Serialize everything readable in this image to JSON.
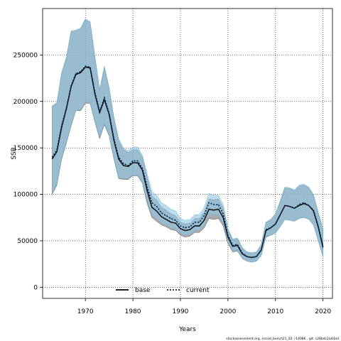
{
  "chart_data": {
    "type": "line",
    "xlabel": "Years",
    "ylabel": "SSB",
    "xlim": [
      1961,
      2022
    ],
    "ylim": [
      -12000,
      300000
    ],
    "xticks": [
      1970,
      1980,
      1990,
      2000,
      2010,
      2020
    ],
    "yticks": [
      0,
      50000,
      100000,
      150000,
      200000,
      250000
    ],
    "grid": true,
    "legend_placement": "bottom-center",
    "x": [
      1963,
      1964,
      1965,
      1966,
      1967,
      1968,
      1969,
      1970,
      1971,
      1972,
      1973,
      1974,
      1975,
      1976,
      1977,
      1978,
      1979,
      1980,
      1981,
      1982,
      1983,
      1984,
      1985,
      1986,
      1987,
      1988,
      1989,
      1990,
      1991,
      1992,
      1993,
      1994,
      1995,
      1996,
      1997,
      1998,
      1999,
      2000,
      2001,
      2002,
      2003,
      2004,
      2005,
      2006,
      2007,
      2008,
      2009,
      2010,
      2011,
      2012,
      2013,
      2014,
      2015,
      2016,
      2017,
      2018,
      2019,
      2020
    ],
    "series": [
      {
        "name": "base",
        "color": "#000000",
        "fill": "#7f7f7f",
        "values": [
          138000,
          146000,
          172000,
          192000,
          216000,
          229000,
          231000,
          237000,
          236000,
          208000,
          188000,
          202000,
          186000,
          158000,
          138000,
          131000,
          130000,
          134000,
          134000,
          126000,
          104000,
          86000,
          82000,
          76000,
          73000,
          70000,
          69000,
          63000,
          61000,
          62000,
          66000,
          66000,
          72000,
          84000,
          83000,
          84000,
          75000,
          54000,
          44000,
          45000,
          36000,
          33000,
          32000,
          33000,
          40000,
          61000,
          64000,
          68000,
          78000,
          88000,
          87000,
          85000,
          88000,
          90000,
          88000,
          82000,
          65000,
          43000
        ],
        "lower": [
          100000,
          110000,
          138000,
          155000,
          174000,
          190000,
          190000,
          198000,
          198000,
          178000,
          160000,
          175000,
          163000,
          138000,
          117000,
          116000,
          116000,
          120000,
          120000,
          112000,
          90000,
          75000,
          71000,
          67000,
          65000,
          62000,
          61000,
          56000,
          54000,
          55000,
          59000,
          59000,
          64000,
          74000,
          73000,
          74000,
          66000,
          47000,
          38000,
          39000,
          31000,
          28000,
          27000,
          28000,
          34000,
          54000,
          56000,
          58000,
          65000,
          73000,
          72000,
          71000,
          74000,
          75000,
          73000,
          67000,
          50000,
          33000
        ],
        "upper": [
          195000,
          198000,
          230000,
          247000,
          275000,
          276000,
          278000,
          288000,
          285000,
          248000,
          212000,
          237000,
          214000,
          182000,
          158000,
          148000,
          145000,
          148000,
          148000,
          140000,
          118000,
          98000,
          94000,
          86000,
          83000,
          79000,
          77000,
          70000,
          68000,
          69000,
          74000,
          74000,
          81000,
          95000,
          94000,
          95000,
          85000,
          62000,
          51000,
          52000,
          42000,
          38000,
          37000,
          38000,
          46000,
          70000,
          73000,
          79000,
          92000,
          107000,
          106000,
          104000,
          109000,
          110000,
          107000,
          99000,
          80000,
          62000
        ]
      },
      {
        "name": "current",
        "color": "#00284d",
        "fill": "#8ec6e6",
        "values": [
          140000,
          148000,
          174000,
          193000,
          217000,
          230000,
          232000,
          238000,
          237000,
          210000,
          189000,
          204000,
          187000,
          160000,
          140000,
          133000,
          131000,
          136000,
          136000,
          128000,
          108000,
          91000,
          87000,
          80000,
          77000,
          74000,
          72000,
          66000,
          64000,
          65000,
          70000,
          70000,
          77000,
          91000,
          89000,
          89000,
          79000,
          56000,
          45000,
          46000,
          37000,
          33000,
          32000,
          33000,
          40000,
          62000,
          64000,
          68000,
          78000,
          88000,
          87000,
          85000,
          89000,
          91000,
          88000,
          83000,
          66000,
          44000
        ],
        "lower": [
          101000,
          111000,
          139000,
          156000,
          175000,
          190000,
          191000,
          199000,
          199000,
          179000,
          161000,
          176000,
          164000,
          139000,
          118000,
          117000,
          117000,
          121000,
          121000,
          113000,
          93000,
          78000,
          74000,
          69000,
          67000,
          64000,
          63000,
          58000,
          56000,
          57000,
          61000,
          61000,
          67000,
          79000,
          78000,
          78000,
          69000,
          49000,
          39000,
          40000,
          31000,
          28000,
          27000,
          28000,
          34000,
          55000,
          56000,
          58000,
          65000,
          73000,
          72000,
          71000,
          74000,
          75000,
          73000,
          67000,
          50000,
          33000
        ],
        "upper": [
          195000,
          199000,
          231000,
          248000,
          276000,
          277000,
          279000,
          289000,
          286000,
          249000,
          213000,
          238000,
          215000,
          183000,
          160000,
          150000,
          147000,
          151000,
          151000,
          142000,
          122000,
          103000,
          99000,
          91000,
          88000,
          84000,
          82000,
          74000,
          72000,
          73000,
          78000,
          78000,
          86000,
          101000,
          99000,
          99000,
          89000,
          63000,
          52000,
          53000,
          43000,
          38000,
          37000,
          38000,
          46000,
          70000,
          73000,
          79000,
          93000,
          108000,
          107000,
          105000,
          110000,
          111000,
          108000,
          100000,
          81000,
          63000
        ]
      }
    ]
  },
  "footer": "stockassessment.org, nscod_bench21_02, r14086 , git: c28bdc2a44ad"
}
